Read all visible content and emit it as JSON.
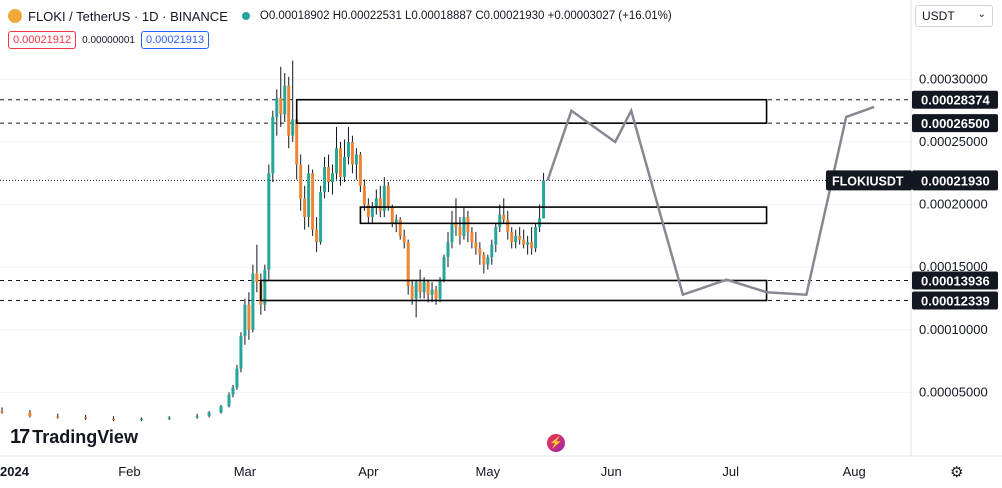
{
  "header": {
    "symbol_title": "FLOKI / TetherUS · 1D · BINANCE",
    "ohlc": "O0.00018902 H0.00022531 L0.00018887 C0.00021930 +0.00003027 (+16.01%)",
    "sell_price": "0.00021912",
    "spread": "0.00000001",
    "buy_price": "0.00021913",
    "currency": "USDT"
  },
  "brand": {
    "name": "TradingView",
    "mark": "17"
  },
  "icons": {
    "symbol_logo": "floki-logo-icon",
    "market_status": "market-open-dot-icon",
    "currency_dropdown": "chevron-down-icon",
    "alert": "lightning-icon",
    "settings": "gear-icon"
  },
  "colors": {
    "bull": "#26a69a",
    "bear": "#ef8533",
    "wick": "#131722",
    "projection": "#868993",
    "zone": "#000000",
    "price_label_bg": "#131722"
  },
  "chart_data": {
    "type": "candlestick",
    "symbol": "FLOKIUSDT",
    "x_ticks": [
      "2024",
      "Feb",
      "Mar",
      "Apr",
      "May",
      "Jun",
      "Jul",
      "Aug"
    ],
    "y_ticks": [
      "0.00030000",
      "0.00025000",
      "0.00020000",
      "0.00015000",
      "0.00010000",
      "0.00005000"
    ],
    "ylim": [
      0,
      0.000345
    ],
    "last_price": {
      "label": "FLOKIUSDT",
      "value": "0.00021930"
    },
    "levels": [
      {
        "value": "0.00028374"
      },
      {
        "value": "0.00026500"
      },
      {
        "value": "0.00013936"
      },
      {
        "value": "0.00012339"
      }
    ],
    "zones": [
      {
        "x_start": "2024-03-14",
        "x_end": "2024-07-10",
        "top": 0.00028374,
        "bottom": 0.000265
      },
      {
        "x_start": "2024-03-30",
        "x_end": "2024-07-10",
        "top": 0.000198,
        "bottom": 0.000185
      },
      {
        "x_start": "2024-03-05",
        "x_end": "2024-07-10",
        "top": 0.00013936,
        "bottom": 0.00012339
      }
    ],
    "projection": [
      {
        "date": "2024-05-16",
        "value": 0.0002193
      },
      {
        "date": "2024-05-22",
        "value": 0.000275
      },
      {
        "date": "2024-06-02",
        "value": 0.00025
      },
      {
        "date": "2024-06-06",
        "value": 0.000275
      },
      {
        "date": "2024-06-19",
        "value": 0.000128
      },
      {
        "date": "2024-06-30",
        "value": 0.00014
      },
      {
        "date": "2024-07-10",
        "value": 0.00013
      },
      {
        "date": "2024-07-20",
        "value": 0.000128
      },
      {
        "date": "2024-07-30",
        "value": 0.00027
      },
      {
        "date": "2024-08-06",
        "value": 0.000278
      }
    ],
    "candles": [
      {
        "date": "2023-12-31",
        "o": 3.5e-05,
        "h": 3.8e-05,
        "l": 3.3e-05,
        "c": 3.4e-05
      },
      {
        "date": "2024-01-07",
        "o": 3.4e-05,
        "h": 3.6e-05,
        "l": 3e-05,
        "c": 3.1e-05
      },
      {
        "date": "2024-01-14",
        "o": 3.1e-05,
        "h": 3.3e-05,
        "l": 2.9e-05,
        "c": 3e-05
      },
      {
        "date": "2024-01-21",
        "o": 3e-05,
        "h": 3.2e-05,
        "l": 2.8e-05,
        "c": 2.9e-05
      },
      {
        "date": "2024-01-28",
        "o": 2.9e-05,
        "h": 3.1e-05,
        "l": 2.7e-05,
        "c": 2.8e-05
      },
      {
        "date": "2024-02-04",
        "o": 2.8e-05,
        "h": 3e-05,
        "l": 2.7e-05,
        "c": 2.9e-05
      },
      {
        "date": "2024-02-11",
        "o": 2.9e-05,
        "h": 3.1e-05,
        "l": 2.8e-05,
        "c": 3e-05
      },
      {
        "date": "2024-02-18",
        "o": 3e-05,
        "h": 3.3e-05,
        "l": 2.9e-05,
        "c": 3.1e-05
      },
      {
        "date": "2024-02-21",
        "o": 3.1e-05,
        "h": 3.5e-05,
        "l": 3e-05,
        "c": 3.4e-05
      },
      {
        "date": "2024-02-24",
        "o": 3.4e-05,
        "h": 4e-05,
        "l": 3.3e-05,
        "c": 3.9e-05
      },
      {
        "date": "2024-02-26",
        "o": 3.9e-05,
        "h": 5e-05,
        "l": 3.8e-05,
        "c": 4.8e-05
      },
      {
        "date": "2024-02-27",
        "o": 4.8e-05,
        "h": 5.6e-05,
        "l": 4.6e-05,
        "c": 5.4e-05
      },
      {
        "date": "2024-02-28",
        "o": 5.4e-05,
        "h": 7.2e-05,
        "l": 5.2e-05,
        "c": 6.9e-05
      },
      {
        "date": "2024-02-29",
        "o": 6.9e-05,
        "h": 9.8e-05,
        "l": 6.6e-05,
        "c": 9.5e-05
      },
      {
        "date": "2024-03-01",
        "o": 9.5e-05,
        "h": 0.000125,
        "l": 8.8e-05,
        "c": 0.00012
      },
      {
        "date": "2024-03-02",
        "o": 0.00012,
        "h": 0.00013,
        "l": 9.2e-05,
        "c": 0.0001
      },
      {
        "date": "2024-03-03",
        "o": 0.0001,
        "h": 0.000152,
        "l": 9.8e-05,
        "c": 0.000145
      },
      {
        "date": "2024-03-04",
        "o": 0.000145,
        "h": 0.000168,
        "l": 0.00013,
        "c": 0.000138
      },
      {
        "date": "2024-03-05",
        "o": 0.000138,
        "h": 0.000145,
        "l": 0.000112,
        "c": 0.00012
      },
      {
        "date": "2024-03-06",
        "o": 0.00012,
        "h": 0.000152,
        "l": 0.000115,
        "c": 0.000148
      },
      {
        "date": "2024-03-07",
        "o": 0.000148,
        "h": 0.000232,
        "l": 0.00014,
        "c": 0.000225
      },
      {
        "date": "2024-03-08",
        "o": 0.000225,
        "h": 0.000275,
        "l": 0.000218,
        "c": 0.00027
      },
      {
        "date": "2024-03-09",
        "o": 0.00027,
        "h": 0.000292,
        "l": 0.000255,
        "c": 0.000285
      },
      {
        "date": "2024-03-10",
        "o": 0.000285,
        "h": 0.00031,
        "l": 0.000262,
        "c": 0.000272
      },
      {
        "date": "2024-03-11",
        "o": 0.000272,
        "h": 0.000305,
        "l": 0.000266,
        "c": 0.000295
      },
      {
        "date": "2024-03-12",
        "o": 0.000295,
        "h": 0.000302,
        "l": 0.000245,
        "c": 0.000255
      },
      {
        "date": "2024-03-13",
        "o": 0.000255,
        "h": 0.000315,
        "l": 0.00025,
        "c": 0.000268
      },
      {
        "date": "2024-03-14",
        "o": 0.000268,
        "h": 0.000272,
        "l": 0.00022,
        "c": 0.000232
      },
      {
        "date": "2024-03-15",
        "o": 0.000232,
        "h": 0.00024,
        "l": 0.000195,
        "c": 0.000205
      },
      {
        "date": "2024-03-16",
        "o": 0.000205,
        "h": 0.000215,
        "l": 0.00018,
        "c": 0.00019
      },
      {
        "date": "2024-03-17",
        "o": 0.00019,
        "h": 0.000232,
        "l": 0.000182,
        "c": 0.000225
      },
      {
        "date": "2024-03-18",
        "o": 0.000225,
        "h": 0.000228,
        "l": 0.000175,
        "c": 0.00018
      },
      {
        "date": "2024-03-19",
        "o": 0.00018,
        "h": 0.00019,
        "l": 0.000162,
        "c": 0.00017
      },
      {
        "date": "2024-03-20",
        "o": 0.00017,
        "h": 0.000215,
        "l": 0.000168,
        "c": 0.00021
      },
      {
        "date": "2024-03-21",
        "o": 0.00021,
        "h": 0.000238,
        "l": 0.000205,
        "c": 0.00023
      },
      {
        "date": "2024-03-22",
        "o": 0.00023,
        "h": 0.00024,
        "l": 0.00021,
        "c": 0.000218
      },
      {
        "date": "2024-03-23",
        "o": 0.000218,
        "h": 0.000232,
        "l": 0.000208,
        "c": 0.000225
      },
      {
        "date": "2024-03-24",
        "o": 0.000225,
        "h": 0.000262,
        "l": 0.00022,
        "c": 0.000245
      },
      {
        "date": "2024-03-25",
        "o": 0.000245,
        "h": 0.00025,
        "l": 0.000215,
        "c": 0.000222
      },
      {
        "date": "2024-03-26",
        "o": 0.000222,
        "h": 0.000252,
        "l": 0.000218,
        "c": 0.000238
      },
      {
        "date": "2024-03-27",
        "o": 0.000238,
        "h": 0.000262,
        "l": 0.000232,
        "c": 0.00025
      },
      {
        "date": "2024-03-28",
        "o": 0.00025,
        "h": 0.000255,
        "l": 0.000225,
        "c": 0.000232
      },
      {
        "date": "2024-03-29",
        "o": 0.000232,
        "h": 0.000245,
        "l": 0.00022,
        "c": 0.00024
      },
      {
        "date": "2024-03-30",
        "o": 0.00024,
        "h": 0.000242,
        "l": 0.00021,
        "c": 0.000215
      },
      {
        "date": "2024-03-31",
        "o": 0.000215,
        "h": 0.00022,
        "l": 0.000195,
        "c": 0.0002
      },
      {
        "date": "2024-04-01",
        "o": 0.0002,
        "h": 0.000205,
        "l": 0.000185,
        "c": 0.00019
      },
      {
        "date": "2024-04-02",
        "o": 0.00019,
        "h": 0.000202,
        "l": 0.000185,
        "c": 0.000198
      },
      {
        "date": "2024-04-03",
        "o": 0.000198,
        "h": 0.000212,
        "l": 0.000192,
        "c": 0.000205
      },
      {
        "date": "2024-04-04",
        "o": 0.000205,
        "h": 0.000215,
        "l": 0.00019,
        "c": 0.000195
      },
      {
        "date": "2024-04-05",
        "o": 0.000195,
        "h": 0.000222,
        "l": 0.00019,
        "c": 0.000215
      },
      {
        "date": "2024-04-06",
        "o": 0.000215,
        "h": 0.000218,
        "l": 0.000195,
        "c": 0.000198
      },
      {
        "date": "2024-04-07",
        "o": 0.000198,
        "h": 0.0002,
        "l": 0.000182,
        "c": 0.000185
      },
      {
        "date": "2024-04-08",
        "o": 0.000185,
        "h": 0.000192,
        "l": 0.000178,
        "c": 0.000188
      },
      {
        "date": "2024-04-09",
        "o": 0.000188,
        "h": 0.00019,
        "l": 0.000172,
        "c": 0.000175
      },
      {
        "date": "2024-04-10",
        "o": 0.000175,
        "h": 0.00018,
        "l": 0.000165,
        "c": 0.00017
      },
      {
        "date": "2024-04-11",
        "o": 0.00017,
        "h": 0.000172,
        "l": 0.000128,
        "c": 0.000135
      },
      {
        "date": "2024-04-12",
        "o": 0.000135,
        "h": 0.00014,
        "l": 0.00012,
        "c": 0.000125
      },
      {
        "date": "2024-04-13",
        "o": 0.000125,
        "h": 0.00014,
        "l": 0.00011,
        "c": 0.000138
      },
      {
        "date": "2024-04-14",
        "o": 0.000138,
        "h": 0.000148,
        "l": 0.000125,
        "c": 0.00013
      },
      {
        "date": "2024-04-15",
        "o": 0.00013,
        "h": 0.000142,
        "l": 0.000125,
        "c": 0.000138
      },
      {
        "date": "2024-04-16",
        "o": 0.000138,
        "h": 0.00014,
        "l": 0.000122,
        "c": 0.000128
      },
      {
        "date": "2024-04-17",
        "o": 0.000128,
        "h": 0.000138,
        "l": 0.000122,
        "c": 0.000132
      },
      {
        "date": "2024-04-18",
        "o": 0.000132,
        "h": 0.000135,
        "l": 0.00012,
        "c": 0.000125
      },
      {
        "date": "2024-04-19",
        "o": 0.000125,
        "h": 0.000142,
        "l": 0.000122,
        "c": 0.00014
      },
      {
        "date": "2024-04-20",
        "o": 0.00014,
        "h": 0.00016,
        "l": 0.000138,
        "c": 0.000158
      },
      {
        "date": "2024-04-21",
        "o": 0.000158,
        "h": 0.000178,
        "l": 0.00015,
        "c": 0.00017
      },
      {
        "date": "2024-04-22",
        "o": 0.00017,
        "h": 0.000195,
        "l": 0.000165,
        "c": 0.000185
      },
      {
        "date": "2024-04-23",
        "o": 0.000185,
        "h": 0.000205,
        "l": 0.000175,
        "c": 0.000182
      },
      {
        "date": "2024-04-24",
        "o": 0.000182,
        "h": 0.00019,
        "l": 0.000168,
        "c": 0.000175
      },
      {
        "date": "2024-04-25",
        "o": 0.000175,
        "h": 0.000198,
        "l": 0.000172,
        "c": 0.00019
      },
      {
        "date": "2024-04-26",
        "o": 0.00019,
        "h": 0.000195,
        "l": 0.00017,
        "c": 0.000178
      },
      {
        "date": "2024-04-27",
        "o": 0.000178,
        "h": 0.000182,
        "l": 0.000165,
        "c": 0.00017
      },
      {
        "date": "2024-04-28",
        "o": 0.00017,
        "h": 0.000178,
        "l": 0.00016,
        "c": 0.000165
      },
      {
        "date": "2024-04-29",
        "o": 0.000165,
        "h": 0.00017,
        "l": 0.000152,
        "c": 0.00016
      },
      {
        "date": "2024-04-30",
        "o": 0.00016,
        "h": 0.000162,
        "l": 0.000145,
        "c": 0.000152
      },
      {
        "date": "2024-05-01",
        "o": 0.000152,
        "h": 0.00016,
        "l": 0.000148,
        "c": 0.000158
      },
      {
        "date": "2024-05-02",
        "o": 0.000158,
        "h": 0.000172,
        "l": 0.000152,
        "c": 0.000168
      },
      {
        "date": "2024-05-03",
        "o": 0.000168,
        "h": 0.000185,
        "l": 0.000162,
        "c": 0.000182
      },
      {
        "date": "2024-05-04",
        "o": 0.000182,
        "h": 0.0002,
        "l": 0.000178,
        "c": 0.000192
      },
      {
        "date": "2024-05-05",
        "o": 0.000192,
        "h": 0.000205,
        "l": 0.000185,
        "c": 0.000188
      },
      {
        "date": "2024-05-06",
        "o": 0.000188,
        "h": 0.000195,
        "l": 0.000172,
        "c": 0.000178
      },
      {
        "date": "2024-05-07",
        "o": 0.000178,
        "h": 0.000182,
        "l": 0.000165,
        "c": 0.00017
      },
      {
        "date": "2024-05-08",
        "o": 0.00017,
        "h": 0.00018,
        "l": 0.000165,
        "c": 0.000175
      },
      {
        "date": "2024-05-09",
        "o": 0.000175,
        "h": 0.000182,
        "l": 0.000168,
        "c": 0.000172
      },
      {
        "date": "2024-05-10",
        "o": 0.000172,
        "h": 0.00018,
        "l": 0.000165,
        "c": 0.000168
      },
      {
        "date": "2024-05-11",
        "o": 0.000168,
        "h": 0.000175,
        "l": 0.00016,
        "c": 0.00017
      },
      {
        "date": "2024-05-12",
        "o": 0.00017,
        "h": 0.000182,
        "l": 0.00016,
        "c": 0.000165
      },
      {
        "date": "2024-05-13",
        "o": 0.000165,
        "h": 0.000185,
        "l": 0.000162,
        "c": 0.000182
      },
      {
        "date": "2024-05-14",
        "o": 0.000182,
        "h": 0.0002,
        "l": 0.000178,
        "c": 0.000189
      },
      {
        "date": "2024-05-15",
        "o": 0.00018902,
        "h": 0.00022531,
        "l": 0.00018887,
        "c": 0.0002193
      }
    ]
  }
}
